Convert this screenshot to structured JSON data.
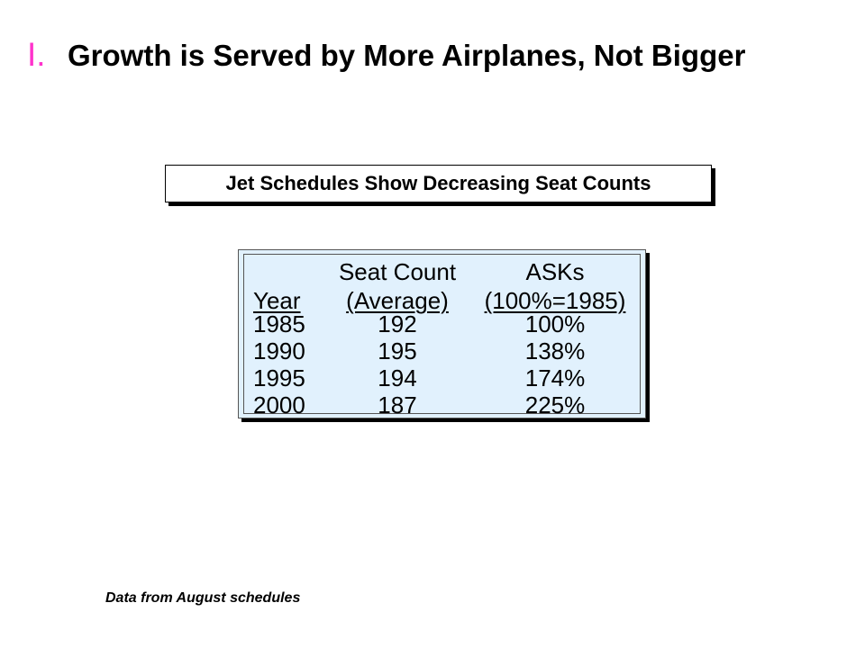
{
  "slide": {
    "marker": "I.",
    "marker_color": "#ff33cc",
    "title": "Growth is Served by More Airplanes, Not Bigger"
  },
  "subtitle": "Jet Schedules Show Decreasing Seat Counts",
  "table": {
    "background_color": "#e1f1fd",
    "header_top": {
      "year": "",
      "seat": "Seat Count",
      "ask": "ASKs"
    },
    "header_bottom": {
      "year": "Year",
      "seat": "(Average)",
      "ask": "(100%=1985)"
    },
    "rows": [
      {
        "year": "1985",
        "seat": "192",
        "ask": "100%"
      },
      {
        "year": "1990",
        "seat": "195",
        "ask": "138%"
      },
      {
        "year": "1995",
        "seat": "194",
        "ask": "174%"
      },
      {
        "year": "2000",
        "seat": "187",
        "ask": "225%"
      }
    ]
  },
  "footnote": "Data from August schedules"
}
